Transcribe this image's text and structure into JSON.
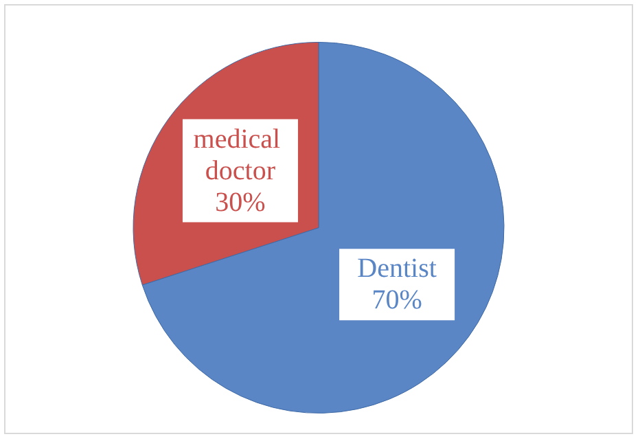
{
  "chart_data": {
    "type": "pie",
    "categories": [
      "Dentist",
      "medical doctor"
    ],
    "values": [
      70,
      30
    ],
    "colors": [
      "#5a86c6",
      "#c9504d"
    ],
    "value_labels": [
      "70%",
      "30%"
    ]
  }
}
